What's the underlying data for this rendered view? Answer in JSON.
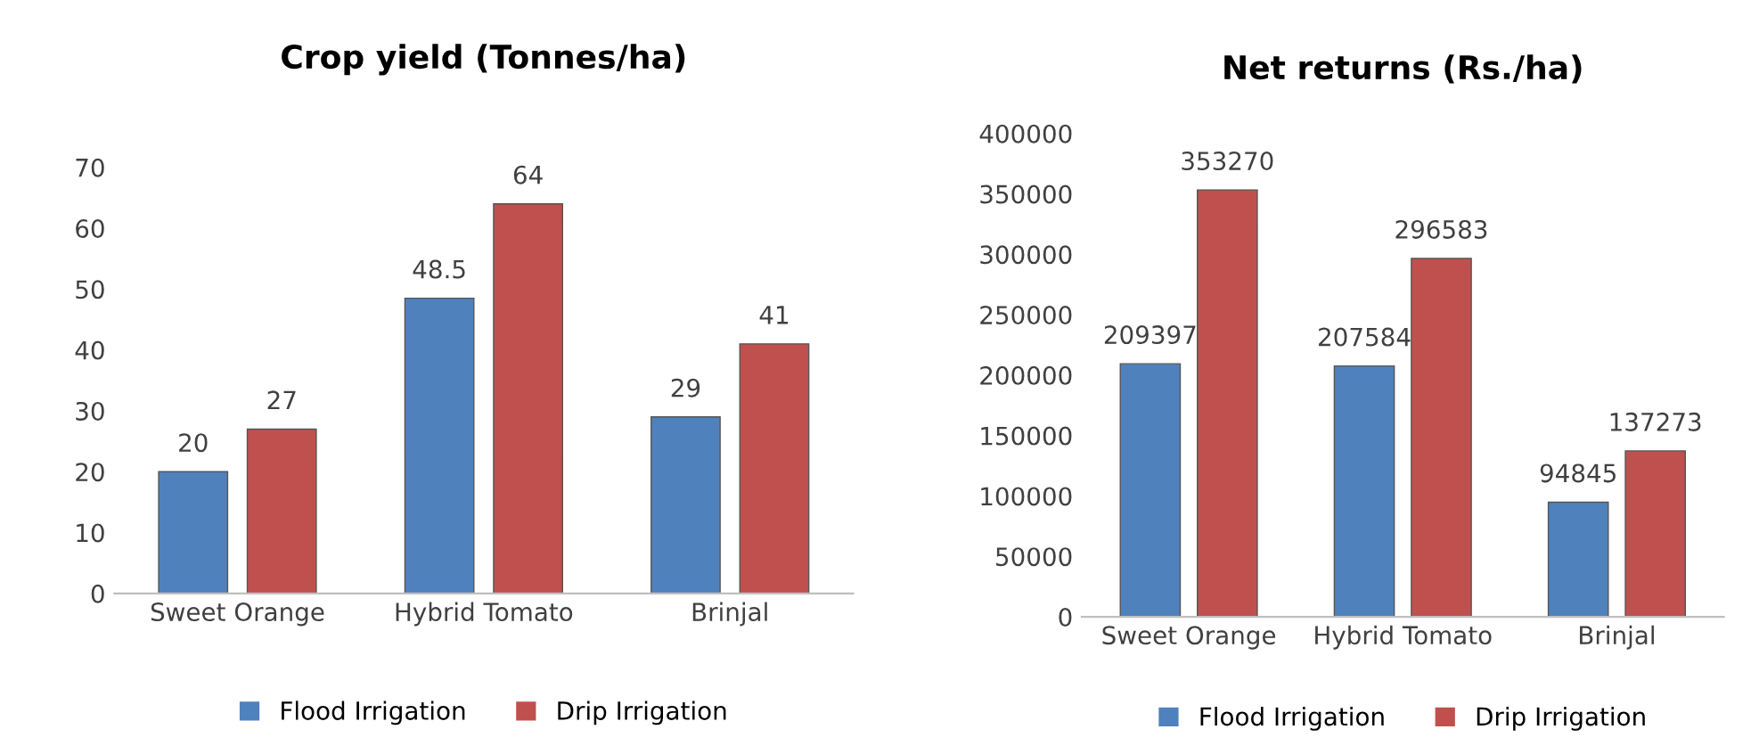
{
  "chart_data": [
    {
      "type": "bar",
      "title": "Crop yield (Tonnes/ha)",
      "categories": [
        "Sweet Orange",
        "Hybrid Tomato",
        "Brinjal"
      ],
      "series": [
        {
          "name": "Flood Irrigation",
          "color": "#4f81bd",
          "values": [
            20,
            48.5,
            29
          ]
        },
        {
          "name": "Drip Irrigation",
          "color": "#c0504d",
          "values": [
            27,
            64,
            41
          ]
        }
      ],
      "ylim": [
        0,
        70
      ],
      "yticks": [
        0,
        10,
        20,
        30,
        40,
        50,
        60,
        70
      ],
      "data_labels": true,
      "legend": "bottom",
      "grid": false
    },
    {
      "type": "bar",
      "title": "Net returns (Rs./ha)",
      "categories": [
        "Sweet Orange",
        "Hybrid Tomato",
        "Brinjal"
      ],
      "series": [
        {
          "name": "Flood Irrigation",
          "color": "#4f81bd",
          "values": [
            209397,
            207584,
            94845
          ]
        },
        {
          "name": "Drip Irrigation",
          "color": "#c0504d",
          "values": [
            353270,
            296583,
            137273
          ]
        }
      ],
      "ylim": [
        0,
        400000
      ],
      "yticks": [
        0,
        50000,
        100000,
        150000,
        200000,
        250000,
        300000,
        350000,
        400000
      ],
      "data_labels": true,
      "legend": "bottom",
      "grid": false
    }
  ]
}
